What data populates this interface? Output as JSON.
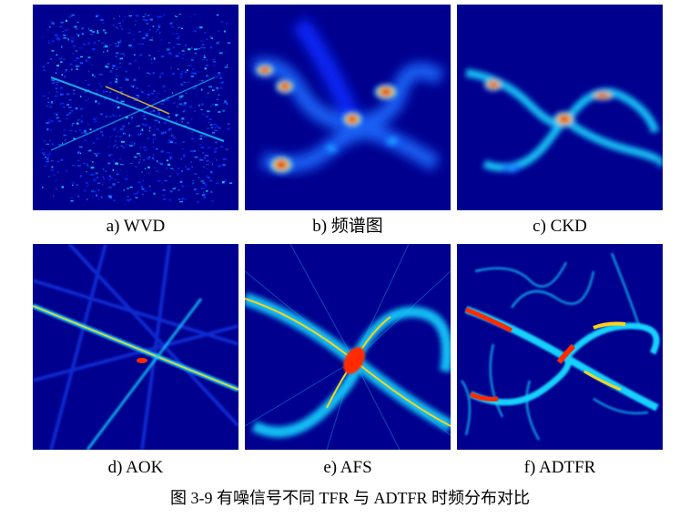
{
  "figure": {
    "caption": "图 3-9 有噪信号不同 TFR 与 ADTFR 时频分布对比",
    "panels": [
      {
        "id": "a",
        "label": "a)  WVD",
        "colormap": "jet"
      },
      {
        "id": "b",
        "label": "b) 频谱图",
        "colormap": "jet"
      },
      {
        "id": "c",
        "label": "c) CKD",
        "colormap": "jet"
      },
      {
        "id": "d",
        "label": "d) AOK",
        "colormap": "jet"
      },
      {
        "id": "e",
        "label": "e) AFS",
        "colormap": "jet"
      },
      {
        "id": "f",
        "label": "f) ADTFR",
        "colormap": "jet"
      }
    ],
    "colors": {
      "background": "#00008f",
      "low": "#0a2cff",
      "mid": "#19d2ff",
      "high": "#ffd21a",
      "peak": "#c80000"
    }
  }
}
